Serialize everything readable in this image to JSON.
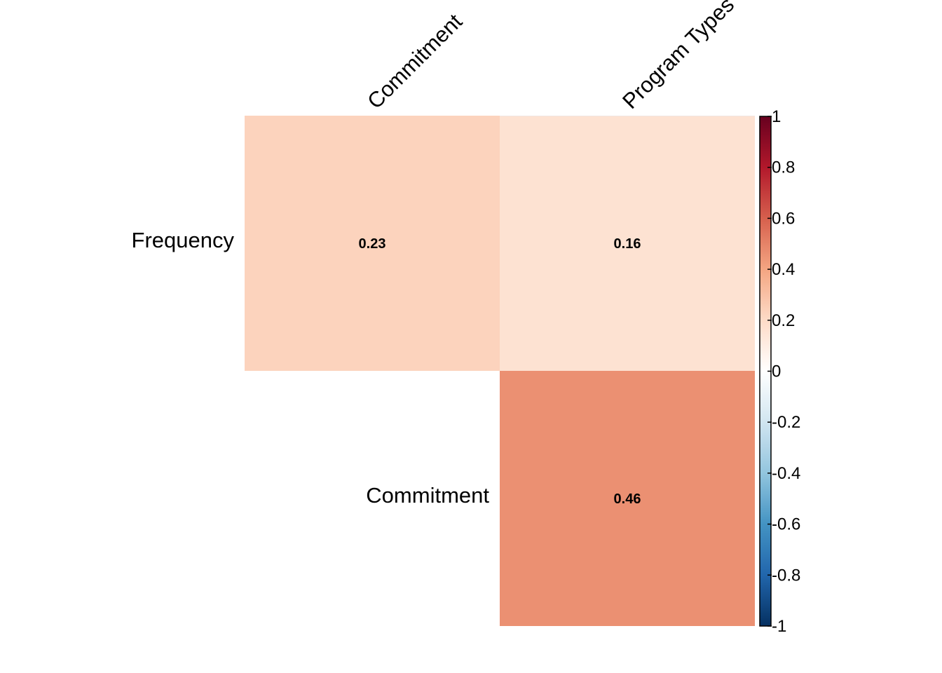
{
  "chart_data": {
    "type": "heatmap",
    "subtype": "correlation-upper-triangle",
    "rows": [
      "Frequency",
      "Commitment"
    ],
    "columns": [
      "Commitment",
      "Program Types"
    ],
    "cells": [
      {
        "row": 0,
        "col": 0,
        "value": 0.23,
        "label": "0.23"
      },
      {
        "row": 0,
        "col": 1,
        "value": 0.16,
        "label": "0.16"
      },
      {
        "row": 1,
        "col": 1,
        "value": 0.46,
        "label": "0.46"
      }
    ],
    "colorbar": {
      "range": [
        -1,
        1
      ],
      "ticks": [
        1,
        0.8,
        0.6,
        0.4,
        0.2,
        0,
        -0.2,
        -0.4,
        -0.6,
        -0.8,
        -1
      ],
      "tick_labels": [
        "1",
        "0.8",
        "0.6",
        "0.4",
        "0.2",
        "0",
        "-0.2",
        "-0.4",
        "-0.6",
        "-0.8",
        "-1"
      ],
      "colors": {
        "negative_end": "#053061",
        "negative_mid": "#4393C3",
        "neutral": "#FFFFFF",
        "positive_mid": "#F4A582",
        "positive_end": "#67001F"
      }
    },
    "title": "",
    "xlabel": "",
    "ylabel": "",
    "legend": "right"
  }
}
